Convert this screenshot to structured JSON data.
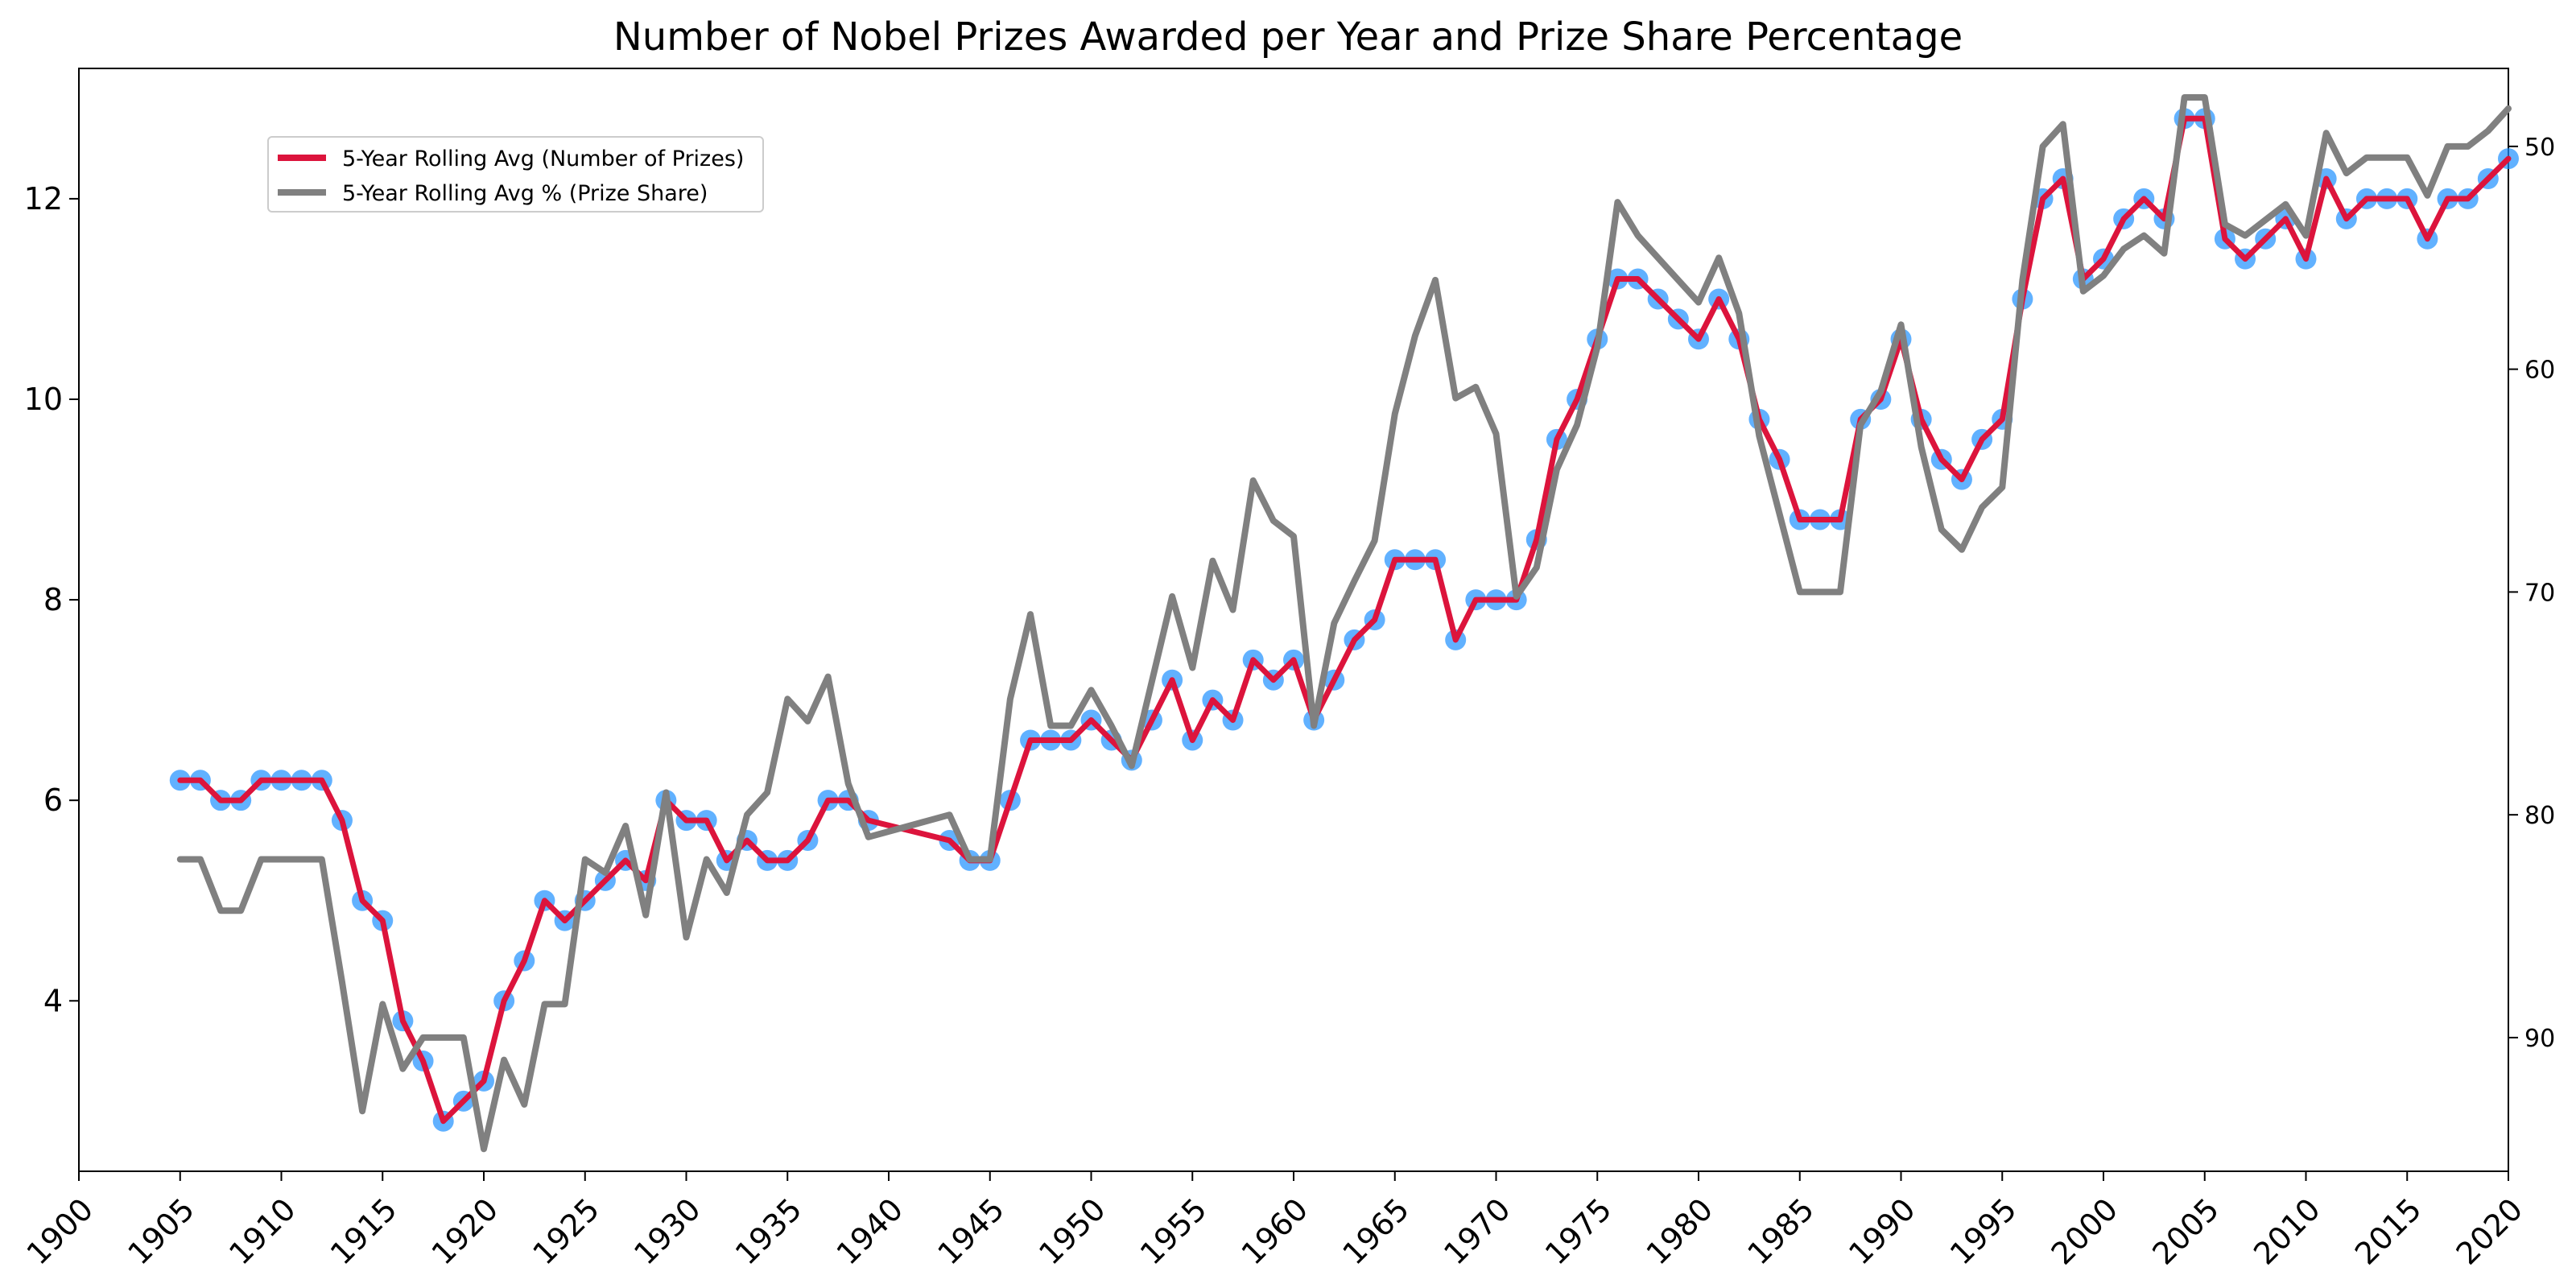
{
  "chart_data": {
    "type": "line",
    "title": "Number of Nobel Prizes Awarded per Year and Prize Share Percentage",
    "xlabel": "",
    "ylabel": "",
    "y2label": "",
    "xlim": [
      1900,
      2020
    ],
    "ylim": [
      2.3,
      13.3
    ],
    "y2lim": [
      96,
      46.5
    ],
    "y2_inverted": true,
    "x_ticks": [
      1900,
      1905,
      1910,
      1915,
      1920,
      1925,
      1930,
      1935,
      1940,
      1945,
      1950,
      1955,
      1960,
      1965,
      1970,
      1975,
      1980,
      1985,
      1990,
      1995,
      2000,
      2005,
      2010,
      2015,
      2020
    ],
    "y_ticks": [
      4,
      6,
      8,
      10,
      12
    ],
    "y2_ticks": [
      50,
      60,
      70,
      80,
      90
    ],
    "grid": false,
    "legend_position": "upper-left",
    "x": [
      1905,
      1906,
      1907,
      1908,
      1909,
      1910,
      1911,
      1912,
      1913,
      1914,
      1915,
      1916,
      1917,
      1918,
      1919,
      1920,
      1921,
      1922,
      1923,
      1924,
      1925,
      1926,
      1927,
      1928,
      1929,
      1930,
      1931,
      1932,
      1933,
      1934,
      1935,
      1936,
      1937,
      1938,
      1939,
      1943,
      1944,
      1945,
      1946,
      1947,
      1948,
      1949,
      1950,
      1951,
      1952,
      1953,
      1954,
      1955,
      1956,
      1957,
      1958,
      1959,
      1960,
      1961,
      1962,
      1963,
      1964,
      1965,
      1966,
      1967,
      1968,
      1969,
      1970,
      1971,
      1972,
      1973,
      1974,
      1975,
      1976,
      1977,
      1978,
      1979,
      1980,
      1981,
      1982,
      1983,
      1984,
      1985,
      1986,
      1987,
      1988,
      1989,
      1990,
      1991,
      1992,
      1993,
      1994,
      1995,
      1996,
      1997,
      1998,
      1999,
      2000,
      2001,
      2002,
      2003,
      2004,
      2005,
      2006,
      2007,
      2008,
      2009,
      2010,
      2011,
      2012,
      2013,
      2014,
      2015,
      2016,
      2017,
      2018,
      2019,
      2020
    ],
    "series": [
      {
        "name": "5-Year Rolling Avg (Number of Prizes)",
        "axis": "left",
        "color": "#dc143c",
        "marker_color": "#1e90ff",
        "values": [
          6.2,
          6.2,
          6.0,
          6.0,
          6.2,
          6.2,
          6.2,
          6.2,
          5.8,
          5.0,
          4.8,
          3.8,
          3.4,
          2.8,
          3.0,
          3.2,
          4.0,
          4.4,
          5.0,
          4.8,
          5.0,
          5.2,
          5.4,
          5.2,
          6.0,
          5.8,
          5.8,
          5.4,
          5.6,
          5.4,
          5.4,
          5.6,
          6.0,
          6.0,
          5.8,
          5.6,
          5.4,
          5.4,
          6.0,
          6.6,
          6.6,
          6.6,
          6.8,
          6.6,
          6.4,
          6.8,
          7.2,
          6.6,
          7.0,
          6.8,
          7.4,
          7.2,
          7.4,
          6.8,
          7.2,
          7.6,
          7.8,
          8.4,
          8.4,
          8.4,
          7.6,
          8.0,
          8.0,
          8.0,
          8.6,
          9.6,
          10.0,
          10.6,
          11.2,
          11.2,
          11.0,
          10.8,
          10.6,
          11.0,
          10.6,
          9.8,
          9.4,
          8.8,
          8.8,
          8.8,
          9.8,
          10.0,
          10.6,
          9.8,
          9.4,
          9.2,
          9.6,
          9.8,
          11.0,
          12.0,
          12.2,
          11.2,
          11.4,
          11.8,
          12.0,
          11.8,
          12.8,
          12.8,
          11.6,
          11.4,
          11.6,
          11.8,
          11.4,
          12.2,
          11.8,
          12.0,
          12.0,
          12.0,
          11.6,
          12.0,
          12.0,
          12.2,
          12.4
        ]
      },
      {
        "name": "5-Year Rolling Avg % (Prize Share)",
        "axis": "right",
        "color": "#808080",
        "values": [
          82,
          82,
          84.3,
          84.3,
          82,
          82,
          82,
          82,
          87.5,
          93.3,
          88.5,
          91.4,
          90,
          90,
          90,
          95,
          91,
          93,
          88.5,
          88.5,
          82,
          82.6,
          80.5,
          84.5,
          79,
          85.5,
          82,
          83.5,
          80,
          79,
          74.8,
          75.8,
          73.8,
          78.6,
          81,
          80,
          82,
          82,
          74.8,
          71,
          76,
          76,
          74.4,
          76,
          77.8,
          74,
          70.2,
          73.4,
          68.6,
          70.8,
          65,
          66.8,
          67.5,
          76,
          71.4,
          69.5,
          67.7,
          62,
          58.5,
          56,
          61.3,
          60.8,
          62.9,
          70.2,
          68.9,
          64.5,
          62.5,
          59,
          52.5,
          54,
          55,
          56,
          57,
          55,
          57.5,
          63,
          66.5,
          70,
          70,
          70,
          62.5,
          61,
          58,
          63.5,
          67.2,
          68.1,
          66.2,
          65.3,
          56,
          50,
          49,
          56.5,
          55.8,
          54.6,
          54,
          54.8,
          47.8,
          47.8,
          53.5,
          54,
          53.3,
          52.6,
          54,
          49.4,
          51.2,
          50.5,
          50.5,
          50.5,
          52.2,
          50,
          50,
          49.3,
          48.3
        ]
      }
    ]
  }
}
